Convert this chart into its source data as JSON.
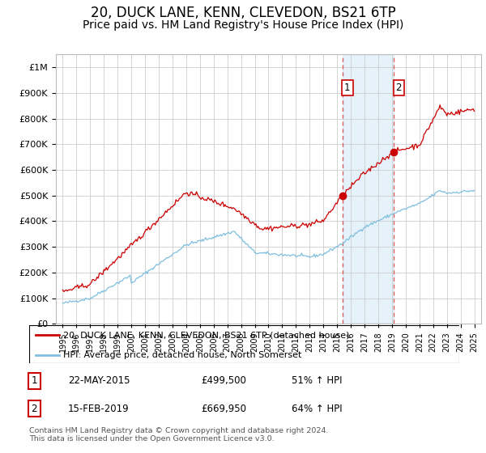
{
  "title": "20, DUCK LANE, KENN, CLEVEDON, BS21 6TP",
  "subtitle": "Price paid vs. HM Land Registry's House Price Index (HPI)",
  "title_fontsize": 12,
  "subtitle_fontsize": 10,
  "legend_line1": "20, DUCK LANE, KENN, CLEVEDON, BS21 6TP (detached house)",
  "legend_line2": "HPI: Average price, detached house, North Somerset",
  "sale1_date": "22-MAY-2015",
  "sale1_price": 499500,
  "sale1_pct": "51% ↑ HPI",
  "sale2_date": "15-FEB-2019",
  "sale2_price": 669950,
  "sale2_pct": "64% ↑ HPI",
  "footer": "Contains HM Land Registry data © Crown copyright and database right 2024.\nThis data is licensed under the Open Government Licence v3.0.",
  "hpi_color": "#7fbfdf",
  "sale_color": "#cc0000",
  "marker1_x": 2015.38,
  "marker2_x": 2019.12,
  "vline1_x": 2015.38,
  "vline2_x": 2019.12,
  "shade_xmin": 2015.38,
  "shade_xmax": 2019.12,
  "ylim_min": 0,
  "ylim_max": 1050000,
  "xlim_min": 1994.5,
  "xlim_max": 2025.5
}
